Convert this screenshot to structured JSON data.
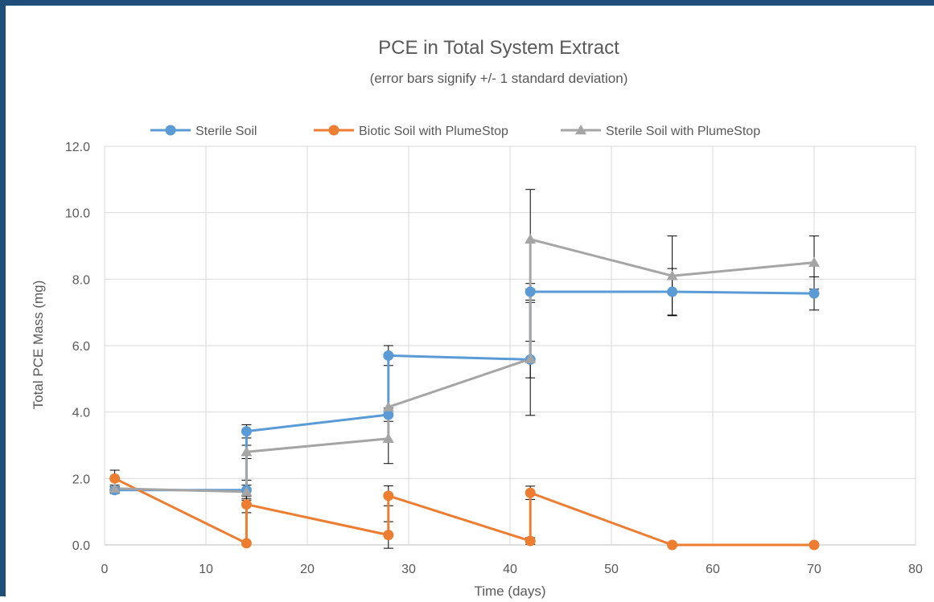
{
  "chart_data": {
    "type": "line",
    "title": "PCE in Total System Extract",
    "subtitle": "(error bars signify +/- 1 standard deviation)",
    "xlabel": "Time (days)",
    "ylabel": "Total PCE Mass  (mg)",
    "xlim": [
      0,
      80
    ],
    "ylim": [
      0,
      12
    ],
    "xticks": [
      0,
      10,
      20,
      30,
      40,
      50,
      60,
      70,
      80
    ],
    "yticks": [
      "0.0",
      "2.0",
      "4.0",
      "6.0",
      "8.0",
      "10.0",
      "12.0"
    ],
    "grid": true,
    "legend_position": "top",
    "series": [
      {
        "name": "Sterile Soil",
        "color": "#5b9bd5",
        "marker": "circle",
        "points": [
          {
            "x": 1,
            "y": 1.65,
            "err": 0.1
          },
          {
            "x": 14,
            "y": 1.65,
            "err": 0.3
          },
          {
            "x": 14,
            "y": 3.42,
            "err": 0.2
          },
          {
            "x": 28,
            "y": 3.92,
            "err": 0.2
          },
          {
            "x": 28,
            "y": 5.7,
            "err": 0.3
          },
          {
            "x": 42,
            "y": 5.58,
            "err": 0.55
          },
          {
            "x": 42,
            "y": 7.62,
            "err": 0.25
          },
          {
            "x": 56,
            "y": 7.62,
            "err": 0.7
          },
          {
            "x": 70,
            "y": 7.57,
            "err": 0.5
          }
        ]
      },
      {
        "name": "Biotic Soil with PlumeStop",
        "color": "#ed7d31",
        "marker": "circle",
        "points": [
          {
            "x": 1,
            "y": 2.0,
            "err": 0.25
          },
          {
            "x": 14,
            "y": 0.05,
            "err": 0.05
          },
          {
            "x": 14,
            "y": 1.22,
            "err": 0.25
          },
          {
            "x": 28,
            "y": 0.3,
            "err": 0.4
          },
          {
            "x": 28,
            "y": 1.48,
            "err": 0.3
          },
          {
            "x": 42,
            "y": 0.12,
            "err": 0.1
          },
          {
            "x": 42,
            "y": 1.57,
            "err": 0.2
          },
          {
            "x": 56,
            "y": 0.0,
            "err": 0.0
          },
          {
            "x": 70,
            "y": 0.0,
            "err": 0.0
          }
        ]
      },
      {
        "name": "Sterile Soil with PlumeStop",
        "color": "#a5a5a5",
        "marker": "triangle",
        "points": [
          {
            "x": 1,
            "y": 1.7,
            "err": 0.1
          },
          {
            "x": 14,
            "y": 1.6,
            "err": 0.2
          },
          {
            "x": 14,
            "y": 2.8,
            "err": 0.2
          },
          {
            "x": 28,
            "y": 3.2,
            "err": 0.75
          },
          {
            "x": 28,
            "y": 4.15,
            "err": 0.0
          },
          {
            "x": 42,
            "y": 5.6,
            "err": 1.7
          },
          {
            "x": 42,
            "y": 9.2,
            "err": 1.5
          },
          {
            "x": 56,
            "y": 8.1,
            "err": 1.2
          },
          {
            "x": 70,
            "y": 8.5,
            "err": 0.8
          }
        ]
      }
    ]
  }
}
